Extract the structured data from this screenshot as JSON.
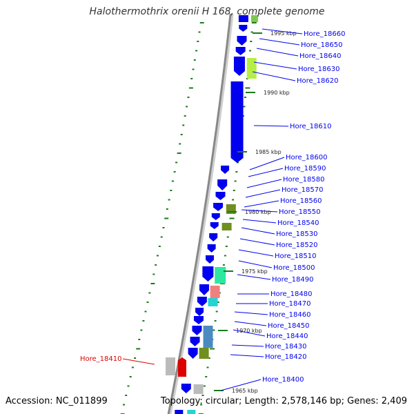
{
  "title": "Halothermothrix orenii H 168, complete genome",
  "accession_text": "Accession: NC_011899",
  "summary_text": "Topology: circular; Length: 2,578,146 bp; Genes: 2,409",
  "colors": {
    "gene_blue": "#0000ee",
    "highlight_red": "#dd0000",
    "tick_green": "#1a7a1a",
    "backbone_gray": "#888888"
  },
  "kbp_markers": [
    "1995 kbp",
    "1990 kbp",
    "1985 kbp",
    "1980 kbp",
    "1975 kbp",
    "1970 kbp",
    "1965 kbp"
  ],
  "genes": [
    {
      "label": "Hore_18660",
      "highlighted": false
    },
    {
      "label": "Hore_18650",
      "highlighted": false
    },
    {
      "label": "Hore_18640",
      "highlighted": false
    },
    {
      "label": "Hore_18630",
      "highlighted": false
    },
    {
      "label": "Hore_18620",
      "highlighted": false
    },
    {
      "label": "Hore_18610",
      "highlighted": false
    },
    {
      "label": "Hore_18600",
      "highlighted": false
    },
    {
      "label": "Hore_18590",
      "highlighted": false
    },
    {
      "label": "Hore_18580",
      "highlighted": false
    },
    {
      "label": "Hore_18570",
      "highlighted": false
    },
    {
      "label": "Hore_18560",
      "highlighted": false
    },
    {
      "label": "Hore_18550",
      "highlighted": false
    },
    {
      "label": "Hore_18540",
      "highlighted": false
    },
    {
      "label": "Hore_18530",
      "highlighted": false
    },
    {
      "label": "Hore_18520",
      "highlighted": false
    },
    {
      "label": "Hore_18510",
      "highlighted": false
    },
    {
      "label": "Hore_18500",
      "highlighted": false
    },
    {
      "label": "Hore_18490",
      "highlighted": false
    },
    {
      "label": "Hore_18480",
      "highlighted": false
    },
    {
      "label": "Hore_18470",
      "highlighted": false
    },
    {
      "label": "Hore_18460",
      "highlighted": false
    },
    {
      "label": "Hore_18450",
      "highlighted": false
    },
    {
      "label": "Hore_18440",
      "highlighted": false
    },
    {
      "label": "Hore_18430",
      "highlighted": false
    },
    {
      "label": "Hore_18420",
      "highlighted": false
    },
    {
      "label": "Hore_18410",
      "highlighted": true
    },
    {
      "label": "Hore_18400",
      "highlighted": false
    }
  ]
}
